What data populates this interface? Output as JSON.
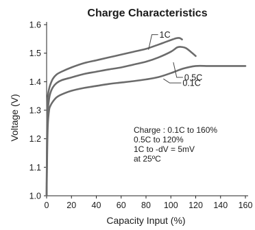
{
  "chart_data": {
    "type": "line",
    "title": "Charge Characteristics",
    "xlabel": "Capacity Input (%)",
    "ylabel": "Voltage (V)",
    "xlim": [
      0,
      160
    ],
    "ylim": [
      1.0,
      1.6
    ],
    "x_ticks": [
      0,
      20,
      40,
      60,
      80,
      100,
      120,
      140,
      160
    ],
    "y_ticks": [
      1.0,
      1.1,
      1.2,
      1.3,
      1.4,
      1.5,
      1.6
    ],
    "y_tick_labels": [
      "1.0",
      "1.1",
      "1.2",
      "1.3",
      "1.4",
      "1.5",
      "1.6"
    ],
    "grid": false,
    "legend": "none (series labeled by callouts)",
    "line_color": "#6b6b6b",
    "series": [
      {
        "name": "1C",
        "x": [
          0,
          0.5,
          1,
          2,
          3,
          5,
          8,
          12,
          20,
          30,
          40,
          50,
          60,
          70,
          80,
          90,
          95,
          100,
          104,
          107,
          109
        ],
        "y": [
          1.0,
          1.3,
          1.35,
          1.375,
          1.39,
          1.41,
          1.425,
          1.435,
          1.45,
          1.465,
          1.475,
          1.485,
          1.495,
          1.505,
          1.515,
          1.53,
          1.538,
          1.546,
          1.552,
          1.553,
          1.548
        ]
      },
      {
        "name": "0.5C",
        "x": [
          0,
          0.5,
          1,
          2,
          3,
          5,
          8,
          12,
          20,
          30,
          40,
          50,
          60,
          70,
          80,
          90,
          100,
          105,
          108,
          112,
          116,
          120
        ],
        "y": [
          1.0,
          1.24,
          1.3,
          1.34,
          1.36,
          1.38,
          1.395,
          1.405,
          1.415,
          1.427,
          1.435,
          1.443,
          1.45,
          1.46,
          1.47,
          1.485,
          1.505,
          1.52,
          1.522,
          1.518,
          1.505,
          1.49
        ]
      },
      {
        "name": "0.1C",
        "x": [
          0,
          0.5,
          1,
          2,
          3,
          5,
          8,
          12,
          20,
          30,
          40,
          50,
          60,
          70,
          80,
          90,
          100,
          110,
          120,
          130,
          140,
          150,
          160
        ],
        "y": [
          1.0,
          1.16,
          1.25,
          1.3,
          1.315,
          1.33,
          1.345,
          1.355,
          1.368,
          1.378,
          1.385,
          1.392,
          1.397,
          1.402,
          1.408,
          1.416,
          1.43,
          1.446,
          1.455,
          1.455,
          1.455,
          1.455,
          1.455
        ]
      }
    ],
    "series_labels": [
      {
        "name": "1C",
        "text": "1C",
        "anchor_x": 82,
        "anchor_y": 1.512
      },
      {
        "name": "0.5C",
        "text": "0.5C",
        "anchor_x": 102,
        "anchor_y": 1.468
      },
      {
        "name": "0.1C",
        "text": "0.1C",
        "anchor_x": 94,
        "anchor_y": 1.41
      }
    ],
    "annotation": {
      "lines": [
        "Charge : 0.1C to 160%",
        "0.5C to 120%",
        "1C to -dV = 5mV",
        "at 25ºC"
      ]
    }
  }
}
